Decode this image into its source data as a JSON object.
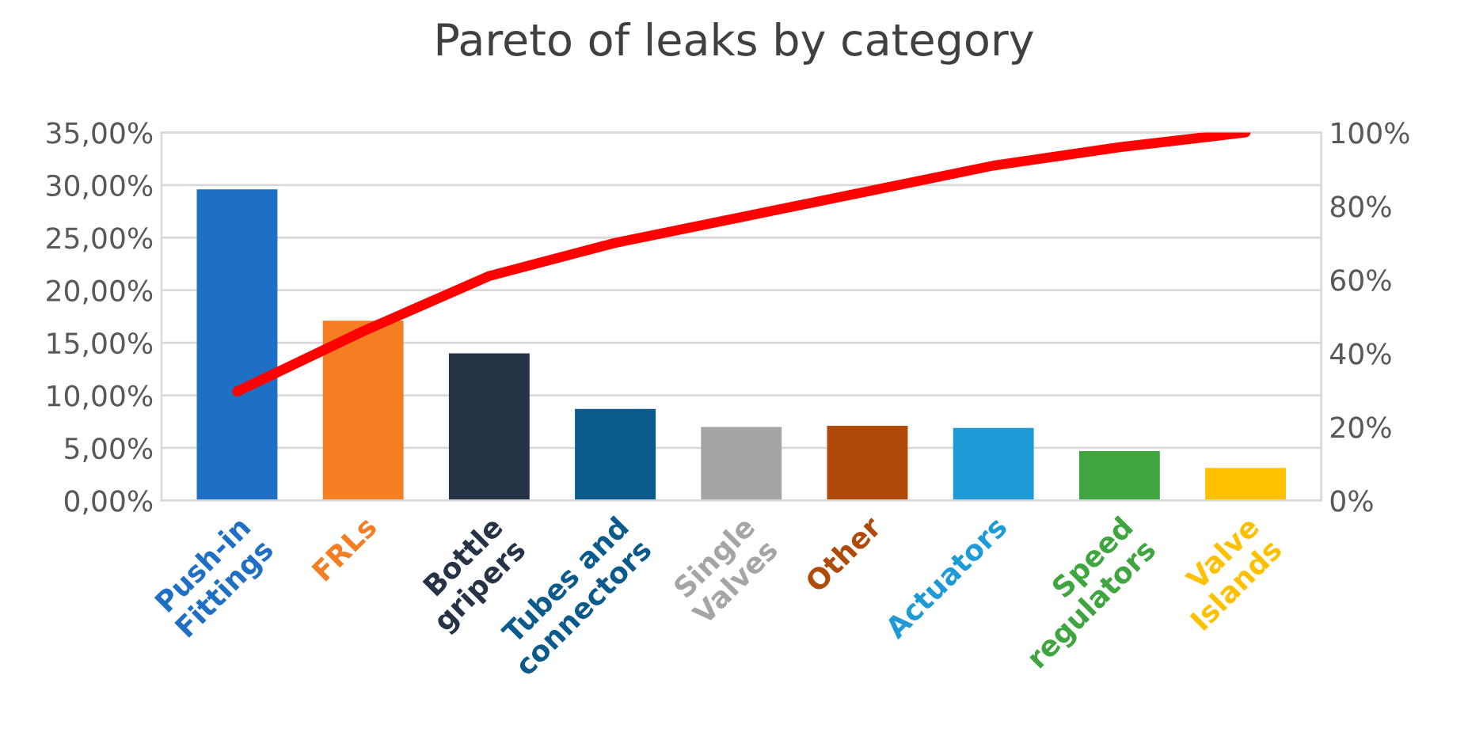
{
  "chart_data": {
    "type": "bar",
    "title": "Pareto of leaks by category",
    "categories": [
      "Push-in\nFittings",
      "FRLs",
      "Bottle\ngripers",
      "Tubes and\nconnectors",
      "Single\nValves",
      "Other",
      "Actuators",
      "Speed\nregulators",
      "Valve\nIslands"
    ],
    "series": [
      {
        "values": [
          29.6,
          17.1,
          14.0,
          8.7,
          7.0,
          7.1,
          6.9,
          4.7,
          3.1
        ],
        "colors": [
          "#1f6fc5",
          "#f57e22",
          "#263347",
          "#0b5a8c",
          "#a5a5a5",
          "#b04a0a",
          "#1e9ad6",
          "#3fa63f",
          "#ffc000"
        ]
      },
      {
        "type": "line",
        "axis": "y2",
        "color": "#ff0000",
        "values": [
          29.6,
          46,
          61,
          70,
          77,
          84,
          91,
          96,
          100
        ]
      }
    ],
    "ylim": [
      0,
      35
    ],
    "yticks": [
      {
        "value": 0,
        "label": "0,00%"
      },
      {
        "value": 5,
        "label": "5,00%"
      },
      {
        "value": 10,
        "label": "10,00%"
      },
      {
        "value": 15,
        "label": "15,00%"
      },
      {
        "value": 20,
        "label": "20,00%"
      },
      {
        "value": 25,
        "label": "25,00%"
      },
      {
        "value": 30,
        "label": "30,00%"
      },
      {
        "value": 35,
        "label": "35,00%"
      }
    ],
    "y2lim": [
      0,
      100
    ],
    "y2ticks": [
      {
        "value": 0,
        "label": "0%"
      },
      {
        "value": 20,
        "label": "20%"
      },
      {
        "value": 40,
        "label": "40%"
      },
      {
        "value": 60,
        "label": "60%"
      },
      {
        "value": 80,
        "label": "80%"
      },
      {
        "value": 100,
        "label": "100%"
      }
    ],
    "grid": "y",
    "legend": false,
    "marker": "none",
    "line_style": "solid"
  }
}
